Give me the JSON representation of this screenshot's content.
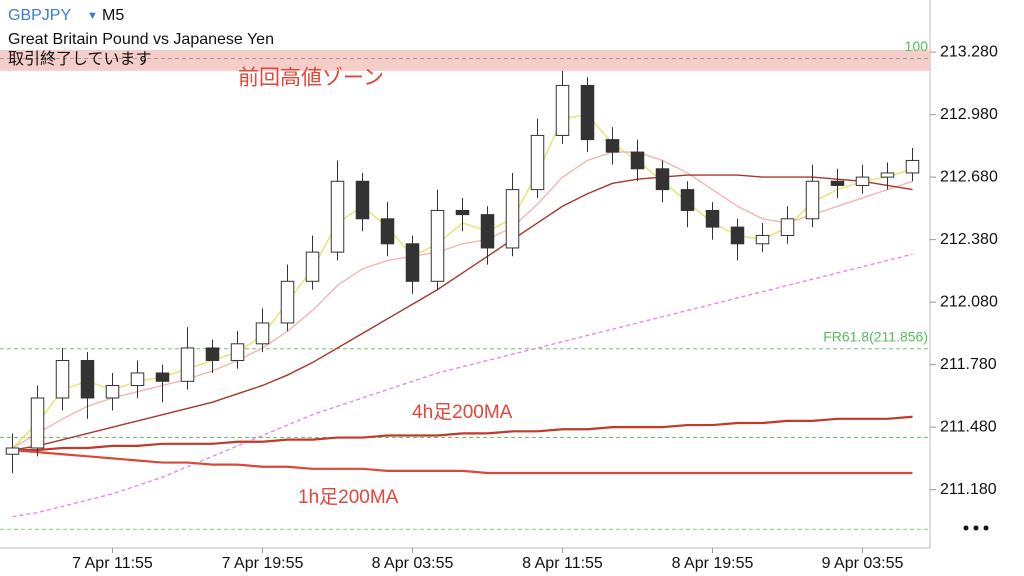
{
  "chart_data": {
    "type": "candlestick",
    "symbol": "GBPJPY",
    "timeframe": "M5",
    "description": "Great Britain Pound vs Japanese Yen",
    "status": "取引終了しています",
    "candle_color": "#333333",
    "categories": [
      null,
      null,
      null,
      null,
      "7 Apr 11:55",
      null,
      null,
      null,
      null,
      null,
      "7 Apr 19:55",
      null,
      null,
      null,
      null,
      null,
      "8 Apr 03:55",
      null,
      null,
      null,
      null,
      null,
      "8 Apr 11:55",
      null,
      null,
      null,
      null,
      null,
      "8 Apr 19:55",
      null,
      null,
      null,
      null,
      null,
      "9 Apr 03:55",
      null,
      null
    ],
    "open": [
      211.35,
      211.38,
      211.62,
      211.8,
      211.62,
      211.68,
      211.74,
      211.7,
      211.86,
      211.8,
      211.88,
      211.98,
      212.18,
      212.32,
      212.66,
      212.48,
      212.36,
      212.18,
      212.52,
      212.5,
      212.34,
      212.62,
      212.88,
      213.12,
      212.86,
      212.8,
      212.72,
      212.62,
      212.52,
      212.44,
      212.36,
      212.4,
      212.48,
      212.66,
      212.64,
      212.68,
      212.7
    ],
    "high": [
      211.45,
      211.68,
      211.86,
      211.84,
      211.74,
      211.8,
      211.78,
      211.96,
      211.9,
      211.94,
      212.05,
      212.26,
      212.4,
      212.76,
      212.7,
      212.56,
      212.4,
      212.62,
      212.58,
      212.54,
      212.7,
      212.96,
      213.19,
      213.16,
      212.92,
      212.86,
      212.76,
      212.66,
      212.56,
      212.48,
      212.46,
      212.54,
      212.74,
      212.72,
      212.74,
      212.75,
      212.82
    ],
    "low": [
      211.26,
      211.34,
      211.56,
      211.52,
      211.56,
      211.62,
      211.6,
      211.66,
      211.74,
      211.76,
      211.84,
      211.94,
      212.14,
      212.28,
      212.42,
      212.3,
      212.12,
      212.14,
      212.42,
      212.26,
      212.3,
      212.58,
      212.84,
      212.8,
      212.74,
      212.66,
      212.56,
      212.44,
      212.38,
      212.28,
      212.32,
      212.36,
      212.44,
      212.58,
      212.6,
      212.62,
      212.66
    ],
    "close": [
      211.38,
      211.62,
      211.8,
      211.62,
      211.68,
      211.74,
      211.7,
      211.86,
      211.8,
      211.88,
      211.98,
      212.18,
      212.32,
      212.66,
      212.48,
      212.36,
      212.18,
      212.52,
      212.5,
      212.34,
      212.62,
      212.88,
      213.12,
      212.86,
      212.8,
      212.72,
      212.62,
      212.52,
      212.44,
      212.36,
      212.4,
      212.48,
      212.66,
      212.64,
      212.68,
      212.7,
      212.76
    ],
    "series": [
      {
        "color": "#e8e36a",
        "values": [
          211.38,
          211.5,
          211.66,
          211.7,
          211.66,
          211.7,
          211.72,
          211.76,
          211.8,
          211.84,
          211.92,
          212.08,
          212.24,
          212.46,
          212.54,
          212.44,
          212.3,
          212.36,
          212.46,
          212.42,
          212.48,
          212.7,
          212.96,
          212.98,
          212.84,
          212.76,
          212.66,
          212.56,
          212.46,
          212.4,
          212.38,
          212.44,
          212.56,
          212.62,
          212.66,
          212.68,
          212.72
        ]
      },
      {
        "color": "#f0b8b0",
        "values": [
          211.38,
          211.45,
          211.52,
          211.58,
          211.62,
          211.65,
          211.68,
          211.71,
          211.75,
          211.8,
          211.86,
          211.94,
          212.04,
          212.16,
          212.24,
          212.28,
          212.3,
          212.32,
          212.36,
          212.38,
          212.44,
          212.55,
          212.68,
          212.76,
          212.8,
          212.8,
          212.76,
          212.7,
          212.62,
          212.54,
          212.48,
          212.46,
          212.5,
          212.54,
          212.58,
          212.62,
          212.66
        ]
      },
      {
        "color": "#a8362c",
        "values": [
          211.37,
          211.39,
          211.42,
          211.45,
          211.48,
          211.51,
          211.54,
          211.57,
          211.6,
          211.64,
          211.68,
          211.73,
          211.79,
          211.86,
          211.93,
          212.0,
          212.07,
          212.14,
          212.22,
          212.3,
          212.38,
          212.46,
          212.54,
          212.6,
          212.65,
          212.67,
          212.68,
          212.69,
          212.69,
          212.69,
          212.68,
          212.68,
          212.68,
          212.67,
          212.66,
          212.64,
          212.62
        ]
      },
      {
        "color": "#e58ae6",
        "dashed": true,
        "values": [
          211.05,
          211.07,
          211.1,
          211.13,
          211.16,
          211.2,
          211.24,
          211.29,
          211.34,
          211.39,
          211.44,
          211.49,
          211.54,
          211.58,
          211.62,
          211.66,
          211.7,
          211.74,
          211.77,
          211.8,
          211.83,
          211.86,
          211.89,
          211.92,
          211.95,
          211.98,
          212.01,
          212.04,
          212.07,
          212.1,
          212.13,
          212.16,
          212.19,
          212.22,
          212.25,
          212.28,
          212.31
        ]
      },
      {
        "name": "4h足200MA",
        "color": "#c0392b",
        "values": [
          211.37,
          211.37,
          211.38,
          211.38,
          211.39,
          211.39,
          211.4,
          211.4,
          211.4,
          211.41,
          211.41,
          211.42,
          211.42,
          211.43,
          211.43,
          211.44,
          211.44,
          211.44,
          211.45,
          211.45,
          211.46,
          211.46,
          211.47,
          211.47,
          211.48,
          211.48,
          211.48,
          211.49,
          211.49,
          211.5,
          211.5,
          211.51,
          211.51,
          211.52,
          211.52,
          211.52,
          211.53
        ]
      },
      {
        "name": "1h足200MA",
        "color": "#d9493a",
        "values": [
          211.37,
          211.36,
          211.35,
          211.34,
          211.33,
          211.32,
          211.31,
          211.31,
          211.3,
          211.3,
          211.29,
          211.29,
          211.28,
          211.28,
          211.28,
          211.27,
          211.27,
          211.27,
          211.27,
          211.26,
          211.26,
          211.26,
          211.26,
          211.26,
          211.26,
          211.26,
          211.26,
          211.26,
          211.26,
          211.26,
          211.26,
          211.26,
          211.26,
          211.26,
          211.26,
          211.26,
          211.26
        ]
      }
    ],
    "levels": [
      {
        "value": 213.25,
        "label": "100"
      },
      {
        "value": 211.856,
        "label": "FR61.8(211.856)"
      },
      {
        "value": 211.43
      },
      {
        "value": 210.99
      }
    ],
    "level_color": "#5cb85c",
    "zone": {
      "label": "前回高値ゾーン",
      "range": [
        213.19,
        213.29
      ],
      "color": "#f4c6c0"
    },
    "ylim": [
      210.9,
      213.53
    ],
    "yticks": [
      {
        "value": 211.18,
        "label": "211.180"
      },
      {
        "value": 211.48,
        "label": "211.480"
      },
      {
        "value": 211.78,
        "label": "211.780"
      },
      {
        "value": 212.08,
        "label": "212.080"
      },
      {
        "value": 212.38,
        "label": "212.380"
      },
      {
        "value": 212.68,
        "label": "212.680"
      },
      {
        "value": 212.98,
        "label": "212.980"
      },
      {
        "value": 213.28,
        "label": "213.280"
      }
    ]
  }
}
